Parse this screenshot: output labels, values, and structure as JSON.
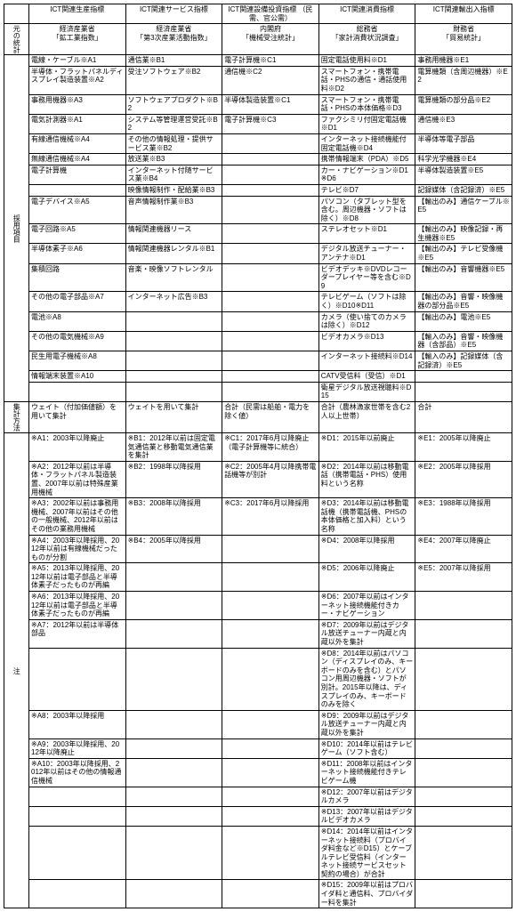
{
  "headers": {
    "c1": "ICT関連生産指標",
    "c2": "ICT関連サービス指標",
    "c3": "ICT関連設備投資指標\n（民需、官公需）",
    "c4": "ICT関連消費指標",
    "c5": "ICT関連輸出入指標"
  },
  "source_row": {
    "label": "元の統計",
    "c1a": "経済産業省",
    "c1b": "「鉱工業指数」",
    "c2a": "経済産業省",
    "c2b": "「第3次産業活動指数」",
    "c3a": "内閣府",
    "c3b": "「機械受注統計」",
    "c4a": "総務省",
    "c4b": "「家計消費状況調査」",
    "c5a": "財務省",
    "c5b": "「貿易統計」"
  },
  "items_label": "採用項目",
  "items": [
    {
      "c1": "電線・ケーブル※A1",
      "c2": "通信業※B1",
      "c3": "電子計算機※C1",
      "c4": "固定電話使用料※D1",
      "c5": "事務用機器※E1"
    },
    {
      "c1": "半導体・フラットパネルディスプレイ製造装置※A2",
      "c2": "受注ソフトウェア※B2",
      "c3": "通信機※C2",
      "c4": "スマートフォン・携帯電話・PHSの通信・通話使用料※D2",
      "c5": "電算機類（含周辺機器）※E2"
    },
    {
      "c1": "事務用機器※A3",
      "c2": "ソフトウェアプロダクト※B2",
      "c3": "半導体製造装置※C1",
      "c4": "スマートフォン・携帯電話・PHSの本体価格※D3",
      "c5": "電算機類の部分品※E2"
    },
    {
      "c1": "電気計測器※A1",
      "c2": "システム等管理運営受託※B2",
      "c3": "電子計算機※C3",
      "c4": "ファクシミリ付固定電話機※D1",
      "c5": "通信機※E3"
    },
    {
      "c1": "有線通信機械※A4",
      "c2": "その他の情報処理・提供サービス業※B2",
      "c3": "",
      "c4": "インターネット接続機能付固定電話機※D4",
      "c5": "半導体等電子部品"
    },
    {
      "c1": "無線通信機械※A4",
      "c2": "放送業※B3",
      "c3": "",
      "c4": "携帯情報端末（PDA）※D5",
      "c5": "科学光学機器※E4"
    },
    {
      "c1": "電子計算機",
      "c2": "インターネット付随サービス業※B4",
      "c3": "",
      "c4": "カー・ナビゲーション※D1※D6",
      "c5": "半導体製造装置※E5"
    },
    {
      "c1": "",
      "c2": "映像情報制作・配給業※B3",
      "c3": "",
      "c4": "テレビ※D7",
      "c5": "記録媒体（含記録済）※E5"
    },
    {
      "c1": "電子デバイス※A5",
      "c2": "音声情報制作業※B3",
      "c3": "",
      "c4": "パソコン（タブレット型を含む。周辺機器・ソフトは除く）※D8",
      "c5": "【輸出のみ】通信ケーブル※E5"
    },
    {
      "c1": "電子回路※A5",
      "c2": "情報関連機器リース",
      "c3": "",
      "c4": "ステレオセット※D1",
      "c5": "【輸出のみ】映像記録・再生機器※E5"
    },
    {
      "c1": "半導体素子※A6",
      "c2": "情報関連機器レンタル※B1",
      "c3": "",
      "c4": "デジタル放送チューナー・アンテナ※D1",
      "c5": "【輸出のみ】テレビ受像機※E5"
    },
    {
      "c1": "集積回路",
      "c2": "音楽・映像ソフトレンタル",
      "c3": "",
      "c4": "ビデオデッキ※DVDレコーダープレイヤー等を含む※D9",
      "c5": "【輸出のみ】音響機器※E5"
    },
    {
      "c1": "その他の電子部品※A7",
      "c2": "インターネット広告※B3",
      "c3": "",
      "c4": "テレビゲーム（ソフトは除く）※D10※D11",
      "c5": "【輸出のみ】音響・映像機器の部分品※E5"
    },
    {
      "c1": "電池※A8",
      "c2": "",
      "c3": "",
      "c4": "カメラ（使い捨てのカメラは除く）※D12",
      "c5": "【輸出のみ】電池※E5"
    },
    {
      "c1": "その他の電気機械※A9",
      "c2": "",
      "c3": "",
      "c4": "ビデオカメラ※D13",
      "c5": "【輸入のみ】音響・映像機器（含部品）※E5"
    },
    {
      "c1": "民生用電子機械※A8",
      "c2": "",
      "c3": "",
      "c4": "インターネット接続料※D14",
      "c5": "【輸入のみ】記録媒体（含記録済）※E5"
    },
    {
      "c1": "情報端末装置※A10",
      "c2": "",
      "c3": "",
      "c4": "CATV受信料（受信）※D1",
      "c5": ""
    },
    {
      "c1": "",
      "c2": "",
      "c3": "",
      "c4": "衛星デジタル放送視聴料※D15",
      "c5": ""
    }
  ],
  "method_row": {
    "label": "集計方法",
    "c1": "ウェイト（付加価値額）を用いて集計",
    "c2": "ウェイトを用いて集計",
    "c3": "合計（民需は船舶・電力を除く値）",
    "c4": "合計（農林漁家世帯を含む2人以上世帯）",
    "c5": "合計"
  },
  "notes_label": "注",
  "notes": [
    {
      "c1": "※A1：2003年以降廃止",
      "c2": "※B1：2012年以前は固定電気通信業と移動電気通信業を集計",
      "c3": "※C1：2017年6月以降廃止（電子計算機等に統合）",
      "c4": "※D1：2015年以前廃止",
      "c5": "※E1：2005年以降廃止"
    },
    {
      "c1": "※A2：2012年以前は半導体・フラットパネル製造装置、2007年以前は特殊産業用機械",
      "c2": "※B2：1998年以降採用",
      "c3": "※C2：2005年4月以降携帯電話機等が別計",
      "c4": "※D2：2014年以前は移動電話（携帯電話・PHS）使用料という名称",
      "c5": "※E2：2005年以降採用"
    },
    {
      "c1": "※A3：2002年以前は事務用機械、2007年以前はその他の一般機械、2012年以前はその他の業務用機械",
      "c2": "※B3：2008年以降採用",
      "c3": "※C3：2017年6月以降採用",
      "c4": "※D3：2014年以前は移動電話機（携帯電話機、PHSの本体価格と加入料）という名称",
      "c5": "※E3：1988年以降採用"
    },
    {
      "c1": "※A4：2003年以降採用、2012年以前は有線機械だったものが分割",
      "c2": "※B4：2005年以降採用",
      "c3": "",
      "c4": "※D4：2008年以降採用",
      "c5": "※E4：2007年以降廃止"
    },
    {
      "c1": "※A5：2013年以降採用、2012年以前は電子部品と半導体素子だったものが再編",
      "c2": "",
      "c3": "",
      "c4": "※D5：2006年以降廃止",
      "c5": "※E5：2007年以降採用"
    },
    {
      "c1": "※A6：2013年以降採用、2012年以前は電子部品と半導体素子だったものが再編",
      "c2": "",
      "c3": "",
      "c4": "※D6：2007年以前はインターネット接続機能付きカー・ナビゲーション",
      "c5": ""
    },
    {
      "c1": "※A7：2012年以前は半導体部品",
      "c2": "",
      "c3": "",
      "c4": "※D7：2009年以前はデジタル放送チューナー内蔵と内蔵以外を集計",
      "c5": ""
    },
    {
      "c1": "",
      "c2": "",
      "c3": "",
      "c4": "※D8：2014年以前はパソコン（ディスプレイのみ、キーボードのみを含む）とパソコン用周辺機器・ソフトが別計。2015年以降は、ディスプレイのみ、キーボードのみを除く",
      "c5": ""
    },
    {
      "c1": "※A8：2003年以降採用",
      "c2": "",
      "c3": "",
      "c4": "※D9：2009年以前はデジタル放送チューナー内蔵と内蔵以外を集計",
      "c5": ""
    },
    {
      "c1": "※A9：2003年以降採用、2012年以降廃止",
      "c2": "",
      "c3": "",
      "c4": "※D10：2014年以前はテレビゲーム（ソフト含む）",
      "c5": ""
    },
    {
      "c1": "※A10：2003年以降採用、2012年以前はその他の情報通信機械",
      "c2": "",
      "c3": "",
      "c4": "※D11：2008年以前はインターネット接続機能付きテレビゲーム機",
      "c5": ""
    },
    {
      "c1": "",
      "c2": "",
      "c3": "",
      "c4": "※D12：2007年以前はデジタルカメラ",
      "c5": ""
    },
    {
      "c1": "",
      "c2": "",
      "c3": "",
      "c4": "※D13：2007年以前はデジタルビデオカメラ",
      "c5": ""
    },
    {
      "c1": "",
      "c2": "",
      "c3": "",
      "c4": "※D14：2014年以前はインターネット接続料（プロバイダ料金など※D15）とケーブルテレビ受信料（インターネット接続サービスセット契約の場合）が合計",
      "c5": ""
    },
    {
      "c1": "",
      "c2": "",
      "c3": "",
      "c4": "※D15：2009年以前はプロバイダ料と通信料、プロバイダー料を集計",
      "c5": ""
    }
  ]
}
